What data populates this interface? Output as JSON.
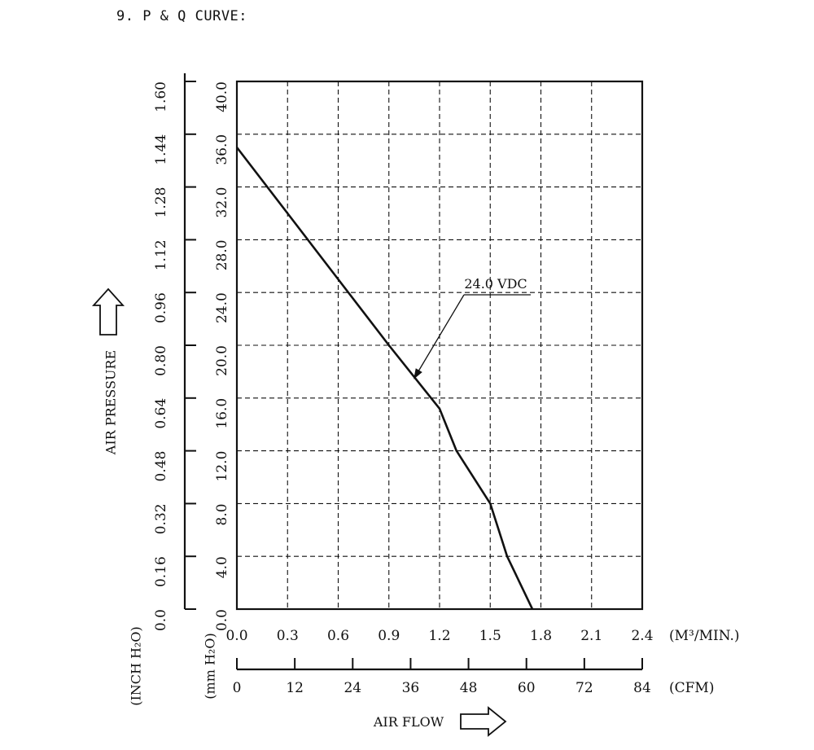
{
  "page": {
    "heading": "9. P & Q CURVE:"
  },
  "chart_data": {
    "type": "line",
    "title": "",
    "x_axes": [
      {
        "id": "m3",
        "unit_label": "(M³/MIN.)",
        "range": [
          0,
          2.4
        ],
        "ticks": [
          "0.0",
          "0.3",
          "0.6",
          "0.9",
          "1.2",
          "1.5",
          "1.8",
          "2.1",
          "2.4"
        ]
      },
      {
        "id": "cfm",
        "unit_label": "(CFM)",
        "range": [
          0,
          84
        ],
        "ticks": [
          "0",
          "12",
          "24",
          "36",
          "48",
          "60",
          "72",
          "84"
        ]
      }
    ],
    "xlabel": "AIR FLOW",
    "y_axes": [
      {
        "id": "mm",
        "unit_label": "(mm H₂O)",
        "range": [
          0,
          40
        ],
        "ticks": [
          "0.0",
          "4.0",
          "8.0",
          "12.0",
          "16.0",
          "20.0",
          "24.0",
          "28.0",
          "32.0",
          "36.0",
          "40.0"
        ]
      },
      {
        "id": "inch",
        "unit_label": "(INCH H₂O)",
        "range": [
          0,
          1.6
        ],
        "ticks": [
          "0.0",
          "0.16",
          "0.32",
          "0.48",
          "0.64",
          "0.80",
          "0.96",
          "1.12",
          "1.28",
          "1.44",
          "1.60"
        ]
      }
    ],
    "ylabel": "AIR PRESSURE",
    "grid": true,
    "series": [
      {
        "name": "24.0 VDC",
        "x": [
          0.0,
          0.3,
          0.6,
          0.9,
          1.2,
          1.3,
          1.5,
          1.6,
          1.75
        ],
        "y": [
          35.0,
          30.0,
          25.0,
          20.0,
          15.2,
          12.0,
          8.0,
          4.0,
          0.0
        ]
      }
    ],
    "annotation": {
      "text": "24.0 VDC",
      "points_to": {
        "x": 1.05,
        "y": 17.5
      }
    }
  },
  "colors": {
    "ink": "#111111",
    "background": "#ffffff"
  }
}
